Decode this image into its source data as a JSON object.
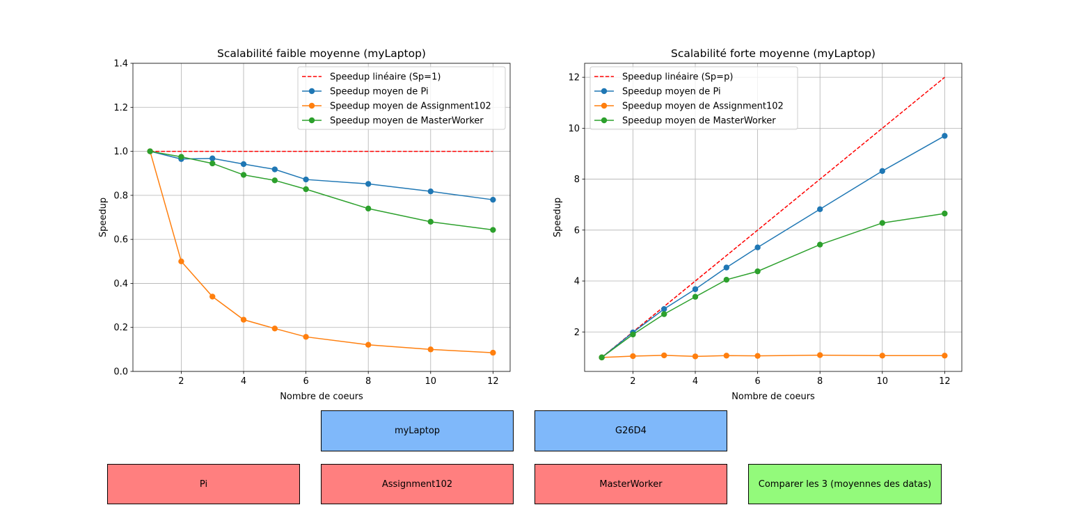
{
  "chart_data": [
    {
      "type": "line",
      "title": "Scalabilité faible moyenne (myLaptop)",
      "xlabel": "Nombre de coeurs",
      "ylabel": "Speedup",
      "xlim": [
        0.45,
        12.55
      ],
      "ylim": [
        0,
        1.4
      ],
      "xticks": [
        2,
        4,
        6,
        8,
        10,
        12
      ],
      "yticks": [
        0.0,
        0.2,
        0.4,
        0.6,
        0.8,
        1.0,
        1.2,
        1.4
      ],
      "ytick_labels": [
        "0.0",
        "0.2",
        "0.4",
        "0.6",
        "0.8",
        "1.0",
        "1.2",
        "1.4"
      ],
      "grid": true,
      "legend_position": "top-right",
      "series": [
        {
          "name": "Speedup linéaire (Sp=1)",
          "color": "#ff0000",
          "style": "dashed",
          "marker": false,
          "x": [
            1,
            12
          ],
          "values": [
            1.0,
            1.0
          ]
        },
        {
          "name": "Speedup moyen de Pi",
          "color": "#1f77b4",
          "style": "solid",
          "marker": true,
          "x": [
            1,
            2,
            3,
            4,
            5,
            6,
            8,
            10,
            12
          ],
          "values": [
            1.0,
            0.965,
            0.968,
            0.942,
            0.918,
            0.872,
            0.852,
            0.818,
            0.78
          ]
        },
        {
          "name": "Speedup moyen de Assignment102",
          "color": "#ff7f0e",
          "style": "solid",
          "marker": true,
          "x": [
            1,
            2,
            3,
            4,
            5,
            6,
            8,
            10,
            12
          ],
          "values": [
            1.0,
            0.5,
            0.34,
            0.235,
            0.195,
            0.157,
            0.121,
            0.1,
            0.085
          ]
        },
        {
          "name": "Speedup moyen de MasterWorker",
          "color": "#2ca02c",
          "style": "solid",
          "marker": true,
          "x": [
            1,
            2,
            3,
            4,
            5,
            6,
            8,
            10,
            12
          ],
          "values": [
            1.0,
            0.975,
            0.945,
            0.893,
            0.868,
            0.828,
            0.74,
            0.68,
            0.643
          ]
        }
      ]
    },
    {
      "type": "line",
      "title": "Scalabilité forte moyenne (myLaptop)",
      "xlabel": "Nombre de coeurs",
      "ylabel": "Speedup",
      "xlim": [
        0.45,
        12.55
      ],
      "ylim": [
        0.45,
        12.55
      ],
      "xticks": [
        2,
        4,
        6,
        8,
        10,
        12
      ],
      "yticks": [
        2,
        4,
        6,
        8,
        10,
        12
      ],
      "ytick_labels": [
        "2",
        "4",
        "6",
        "8",
        "10",
        "12"
      ],
      "grid": true,
      "legend_position": "top-left",
      "series": [
        {
          "name": "Speedup linéaire (Sp=p)",
          "color": "#ff0000",
          "style": "dashed",
          "marker": false,
          "x": [
            1,
            12
          ],
          "values": [
            1,
            12
          ]
        },
        {
          "name": "Speedup moyen de Pi",
          "color": "#1f77b4",
          "style": "solid",
          "marker": true,
          "x": [
            1,
            2,
            3,
            4,
            5,
            6,
            8,
            10,
            12
          ],
          "values": [
            1.0,
            1.98,
            2.9,
            3.68,
            4.53,
            5.32,
            6.82,
            8.32,
            9.7
          ]
        },
        {
          "name": "Speedup moyen de Assignment102",
          "color": "#ff7f0e",
          "style": "solid",
          "marker": true,
          "x": [
            1,
            2,
            3,
            4,
            5,
            6,
            8,
            10,
            12
          ],
          "values": [
            1.0,
            1.05,
            1.08,
            1.04,
            1.07,
            1.06,
            1.09,
            1.07,
            1.07
          ]
        },
        {
          "name": "Speedup moyen de MasterWorker",
          "color": "#2ca02c",
          "style": "solid",
          "marker": true,
          "x": [
            1,
            2,
            3,
            4,
            5,
            6,
            8,
            10,
            12
          ],
          "values": [
            1.0,
            1.9,
            2.7,
            3.38,
            4.05,
            4.38,
            5.43,
            6.28,
            6.65
          ]
        }
      ]
    }
  ],
  "buttons": {
    "mylaptop": {
      "label": "myLaptop",
      "color": "#7fb8fa"
    },
    "g26d4": {
      "label": "G26D4",
      "color": "#7fb8fa"
    },
    "pi": {
      "label": "Pi",
      "color": "#ff7f7f"
    },
    "assignment102": {
      "label": "Assignment102",
      "color": "#ff7f7f"
    },
    "masterworker": {
      "label": "MasterWorker",
      "color": "#ff7f7f"
    },
    "compare": {
      "label": "Comparer les 3 (moyennes des datas)",
      "color": "#93fa7b"
    }
  }
}
